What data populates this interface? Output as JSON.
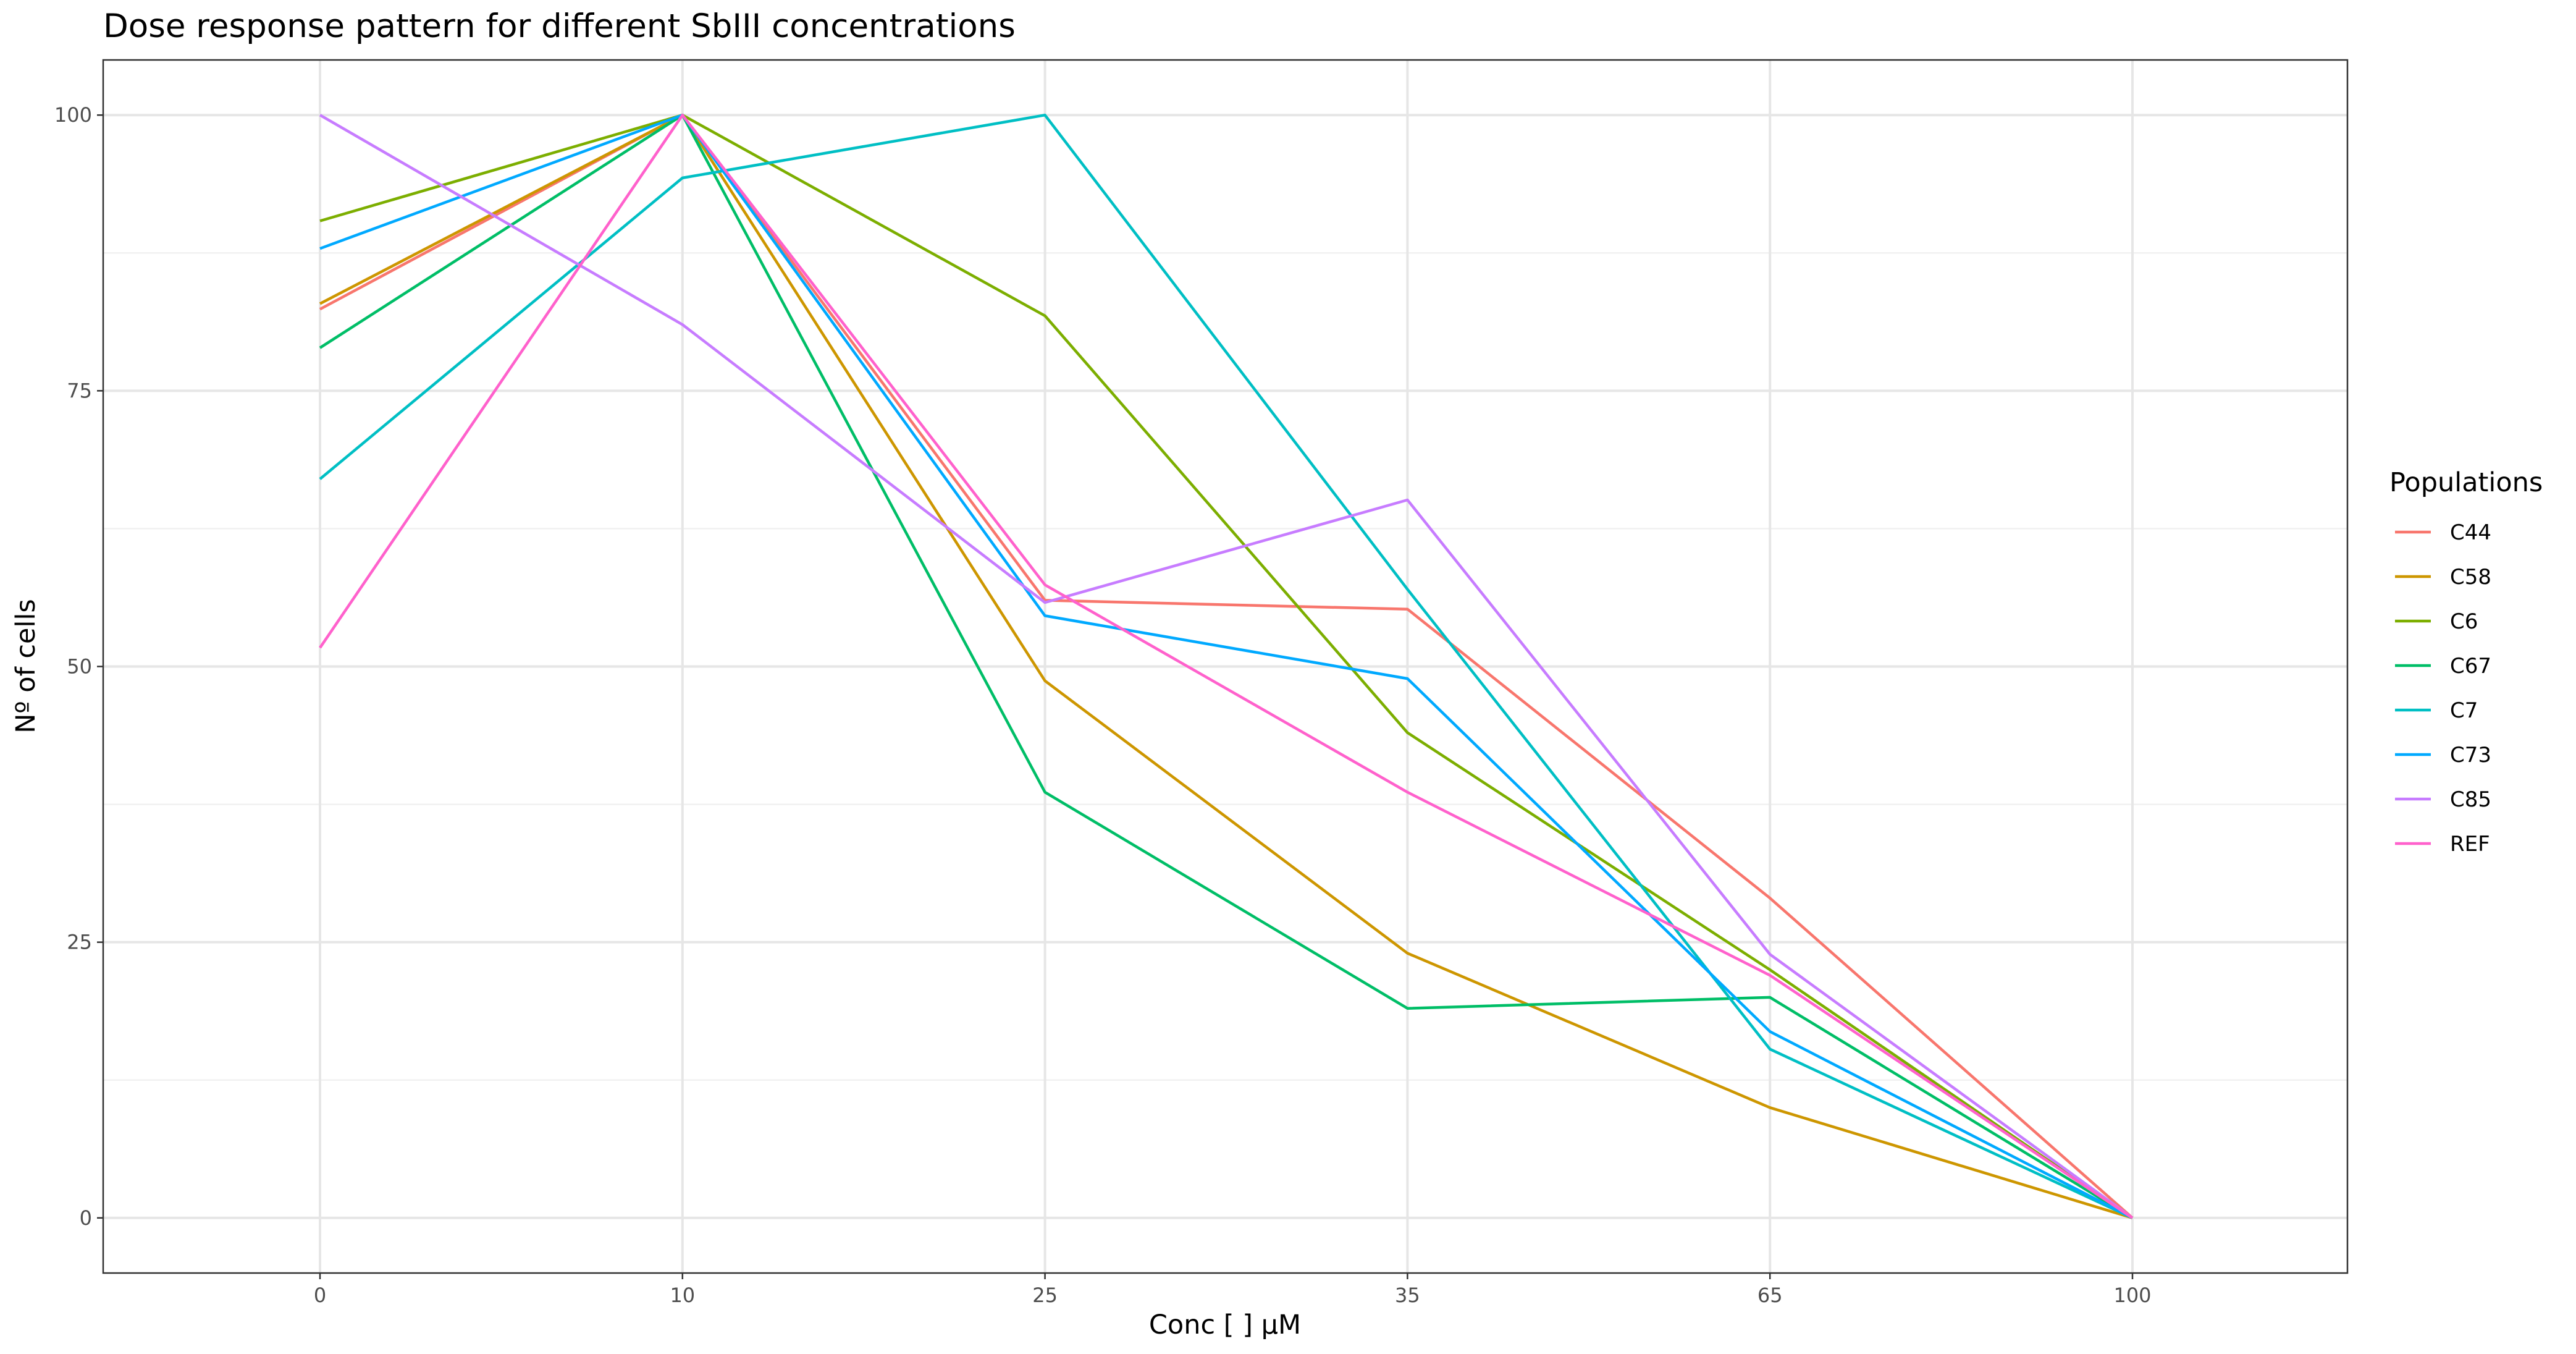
{
  "chart_data": {
    "type": "line",
    "title": "Dose response pattern for different SbIII concentrations",
    "xlabel": "Conc [    ] µM",
    "ylabel": "Nº of cells",
    "categories": [
      "0",
      "10",
      "25",
      "35",
      "65",
      "100"
    ],
    "ylim": [
      -5,
      105
    ],
    "yticks": [
      0,
      25,
      50,
      75,
      100
    ],
    "yticks_labels": [
      "0",
      "25",
      "50",
      "75",
      "100"
    ],
    "grid": true,
    "legend": {
      "title": "Populations",
      "position": "right"
    },
    "series": [
      {
        "name": "C44",
        "color": "#F8766D",
        "values": [
          82.4,
          100,
          56.0,
          55.2,
          29.0,
          0
        ]
      },
      {
        "name": "C58",
        "color": "#CD9600",
        "values": [
          82.9,
          100,
          48.7,
          24.0,
          10.0,
          0
        ]
      },
      {
        "name": "C6",
        "color": "#7CAE00",
        "values": [
          90.4,
          100,
          81.8,
          44.0,
          22.5,
          0
        ]
      },
      {
        "name": "C67",
        "color": "#00BE67",
        "values": [
          78.9,
          100,
          38.6,
          19.0,
          20.0,
          0
        ]
      },
      {
        "name": "C7",
        "color": "#00BFC4",
        "values": [
          67.0,
          94.3,
          100,
          57.0,
          15.3,
          0
        ]
      },
      {
        "name": "C73",
        "color": "#00A9FF",
        "values": [
          87.9,
          100,
          54.6,
          48.9,
          16.9,
          0
        ]
      },
      {
        "name": "C85",
        "color": "#C77CFF",
        "values": [
          100,
          81.0,
          55.8,
          65.1,
          23.9,
          0
        ]
      },
      {
        "name": "REF",
        "color": "#FF61CC",
        "values": [
          51.7,
          100,
          57.4,
          38.6,
          22.0,
          0
        ]
      }
    ]
  }
}
